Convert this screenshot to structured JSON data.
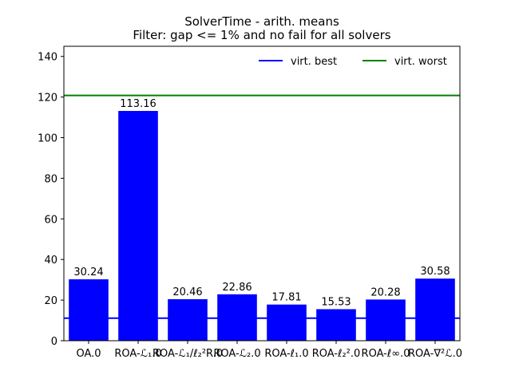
{
  "chart_data": {
    "type": "bar",
    "title": "SolverTime - arith. means",
    "subtitle": "Filter: gap <= 1% and no fail for all solvers",
    "xlabel": "",
    "ylabel": "",
    "ylim": [
      0,
      145
    ],
    "yticks": [
      0,
      20,
      40,
      60,
      80,
      100,
      120,
      140
    ],
    "categories": [
      "OA.0",
      "ROA-ℒ₁.0",
      "ROA-ℒ₁/ℓ₂²R.0",
      "ROA-ℒ₂.0",
      "ROA-ℓ₁.0",
      "ROA-ℓ₂².0",
      "ROA-ℓ∞.0",
      "ROA-∇²ℒ.0"
    ],
    "values": [
      30.24,
      113.16,
      20.46,
      22.86,
      17.81,
      15.53,
      20.28,
      30.58
    ],
    "value_labels": [
      "30.24",
      "113.16",
      "20.46",
      "22.86",
      "17.81",
      "15.53",
      "20.28",
      "30.58"
    ],
    "bar_color": "#0000ff",
    "reference_lines": [
      {
        "name": "virt. best",
        "value": 11.1,
        "color": "#0000ff"
      },
      {
        "name": "virt. worst",
        "value": 120.8,
        "color": "#008000"
      }
    ],
    "legend": {
      "position": "top-right",
      "entries": [
        "virt. best",
        "virt. worst"
      ]
    },
    "grid": false
  }
}
